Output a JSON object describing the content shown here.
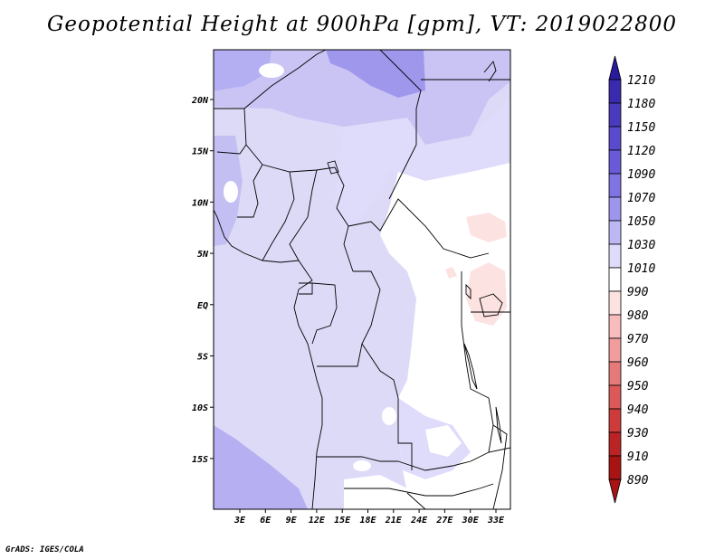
{
  "title": "Geopotential Height at 900hPa [gpm], VT: 2019022800",
  "credit": "GrADS: IGES/COLA",
  "map": {
    "lon_labels": [
      "3E",
      "6E",
      "9E",
      "12E",
      "15E",
      "18E",
      "21E",
      "24E",
      "27E",
      "30E",
      "33E"
    ],
    "lat_labels": [
      "20N",
      "15N",
      "10N",
      "5N",
      "EQ",
      "5S",
      "10S",
      "15S"
    ]
  },
  "colorbar": {
    "levels": [
      "1210",
      "1180",
      "1150",
      "1120",
      "1090",
      "1070",
      "1050",
      "1030",
      "1010",
      "990",
      "980",
      "970",
      "960",
      "950",
      "940",
      "930",
      "910",
      "890"
    ],
    "colors": [
      "#2a1a9e",
      "#3a2aae",
      "#4a3abe",
      "#5a4ace",
      "#6a5ad8",
      "#7f74e2",
      "#9e96ec",
      "#bdb8f4",
      "#dedcfa",
      "#ffffff",
      "#fde2e2",
      "#f8bcbc",
      "#f19d9d",
      "#e57a7a",
      "#db5959",
      "#cd3b3b",
      "#bb2424",
      "#a81414"
    ]
  }
}
